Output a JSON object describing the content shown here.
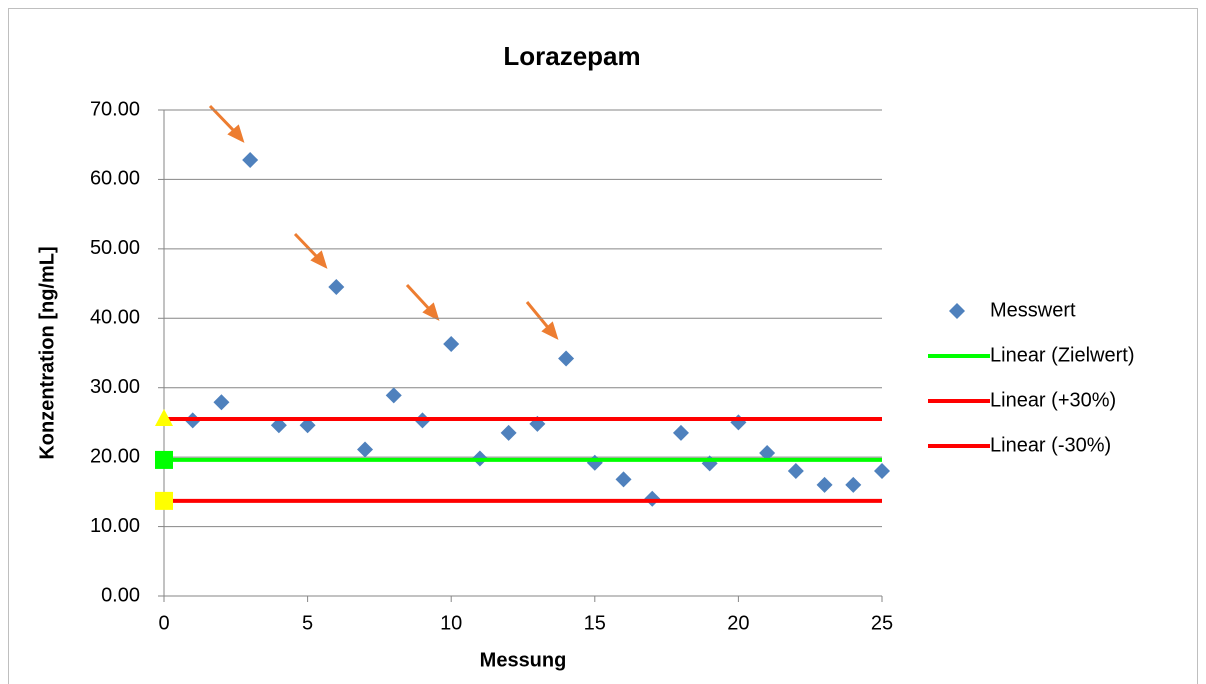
{
  "chart_data": {
    "type": "scatter",
    "title": "Lorazepam",
    "x_label": "Messung",
    "y_label": "Konzentration [ng/mL]",
    "xlim": [
      0,
      25
    ],
    "ylim": [
      0,
      70
    ],
    "xticks": [
      0,
      5,
      10,
      15,
      20,
      25
    ],
    "yticks": [
      {
        "value": 0,
        "label": "0.00"
      },
      {
        "value": 10,
        "label": "10.00"
      },
      {
        "value": 20,
        "label": "20.00"
      },
      {
        "value": 30,
        "label": "30.00"
      },
      {
        "value": 40,
        "label": "40.00"
      },
      {
        "value": 50,
        "label": "50.00"
      },
      {
        "value": 60,
        "label": "60.00"
      },
      {
        "value": 70,
        "label": "70.00"
      }
    ],
    "grid": true,
    "legend": "right",
    "series": [
      {
        "name": "Messwert",
        "color": "#4f81bd",
        "marker": "diamond",
        "x": [
          1,
          2,
          3,
          4,
          5,
          6,
          7,
          8,
          9,
          10,
          11,
          12,
          13,
          14,
          15,
          16,
          17,
          18,
          19,
          20,
          21,
          22,
          23,
          24,
          25
        ],
        "values": [
          25.3,
          27.9,
          62.8,
          24.6,
          24.6,
          44.5,
          21.1,
          28.9,
          25.3,
          36.3,
          19.8,
          23.5,
          24.8,
          34.2,
          19.2,
          16.8,
          14.0,
          23.5,
          19.1,
          25.0,
          20.6,
          18.0,
          16.0,
          16.0,
          18.0
        ]
      },
      {
        "name": "Linear (Zielwert)",
        "color": "#00ff00",
        "marker": "square",
        "marker_color": "#00ff00",
        "x": [
          0,
          25
        ],
        "values": [
          19.6,
          19.6
        ]
      },
      {
        "name": "Linear (+30%)",
        "color": "#ff0000",
        "marker": "triangle",
        "marker_color": "#ffff00",
        "x": [
          0,
          25
        ],
        "values": [
          25.5,
          25.5
        ]
      },
      {
        "name": "Linear (-30%)",
        "color": "#ff0000",
        "marker": "square",
        "marker_color": "#ffff00",
        "x": [
          0,
          25
        ],
        "values": [
          13.7,
          13.7
        ]
      }
    ]
  }
}
